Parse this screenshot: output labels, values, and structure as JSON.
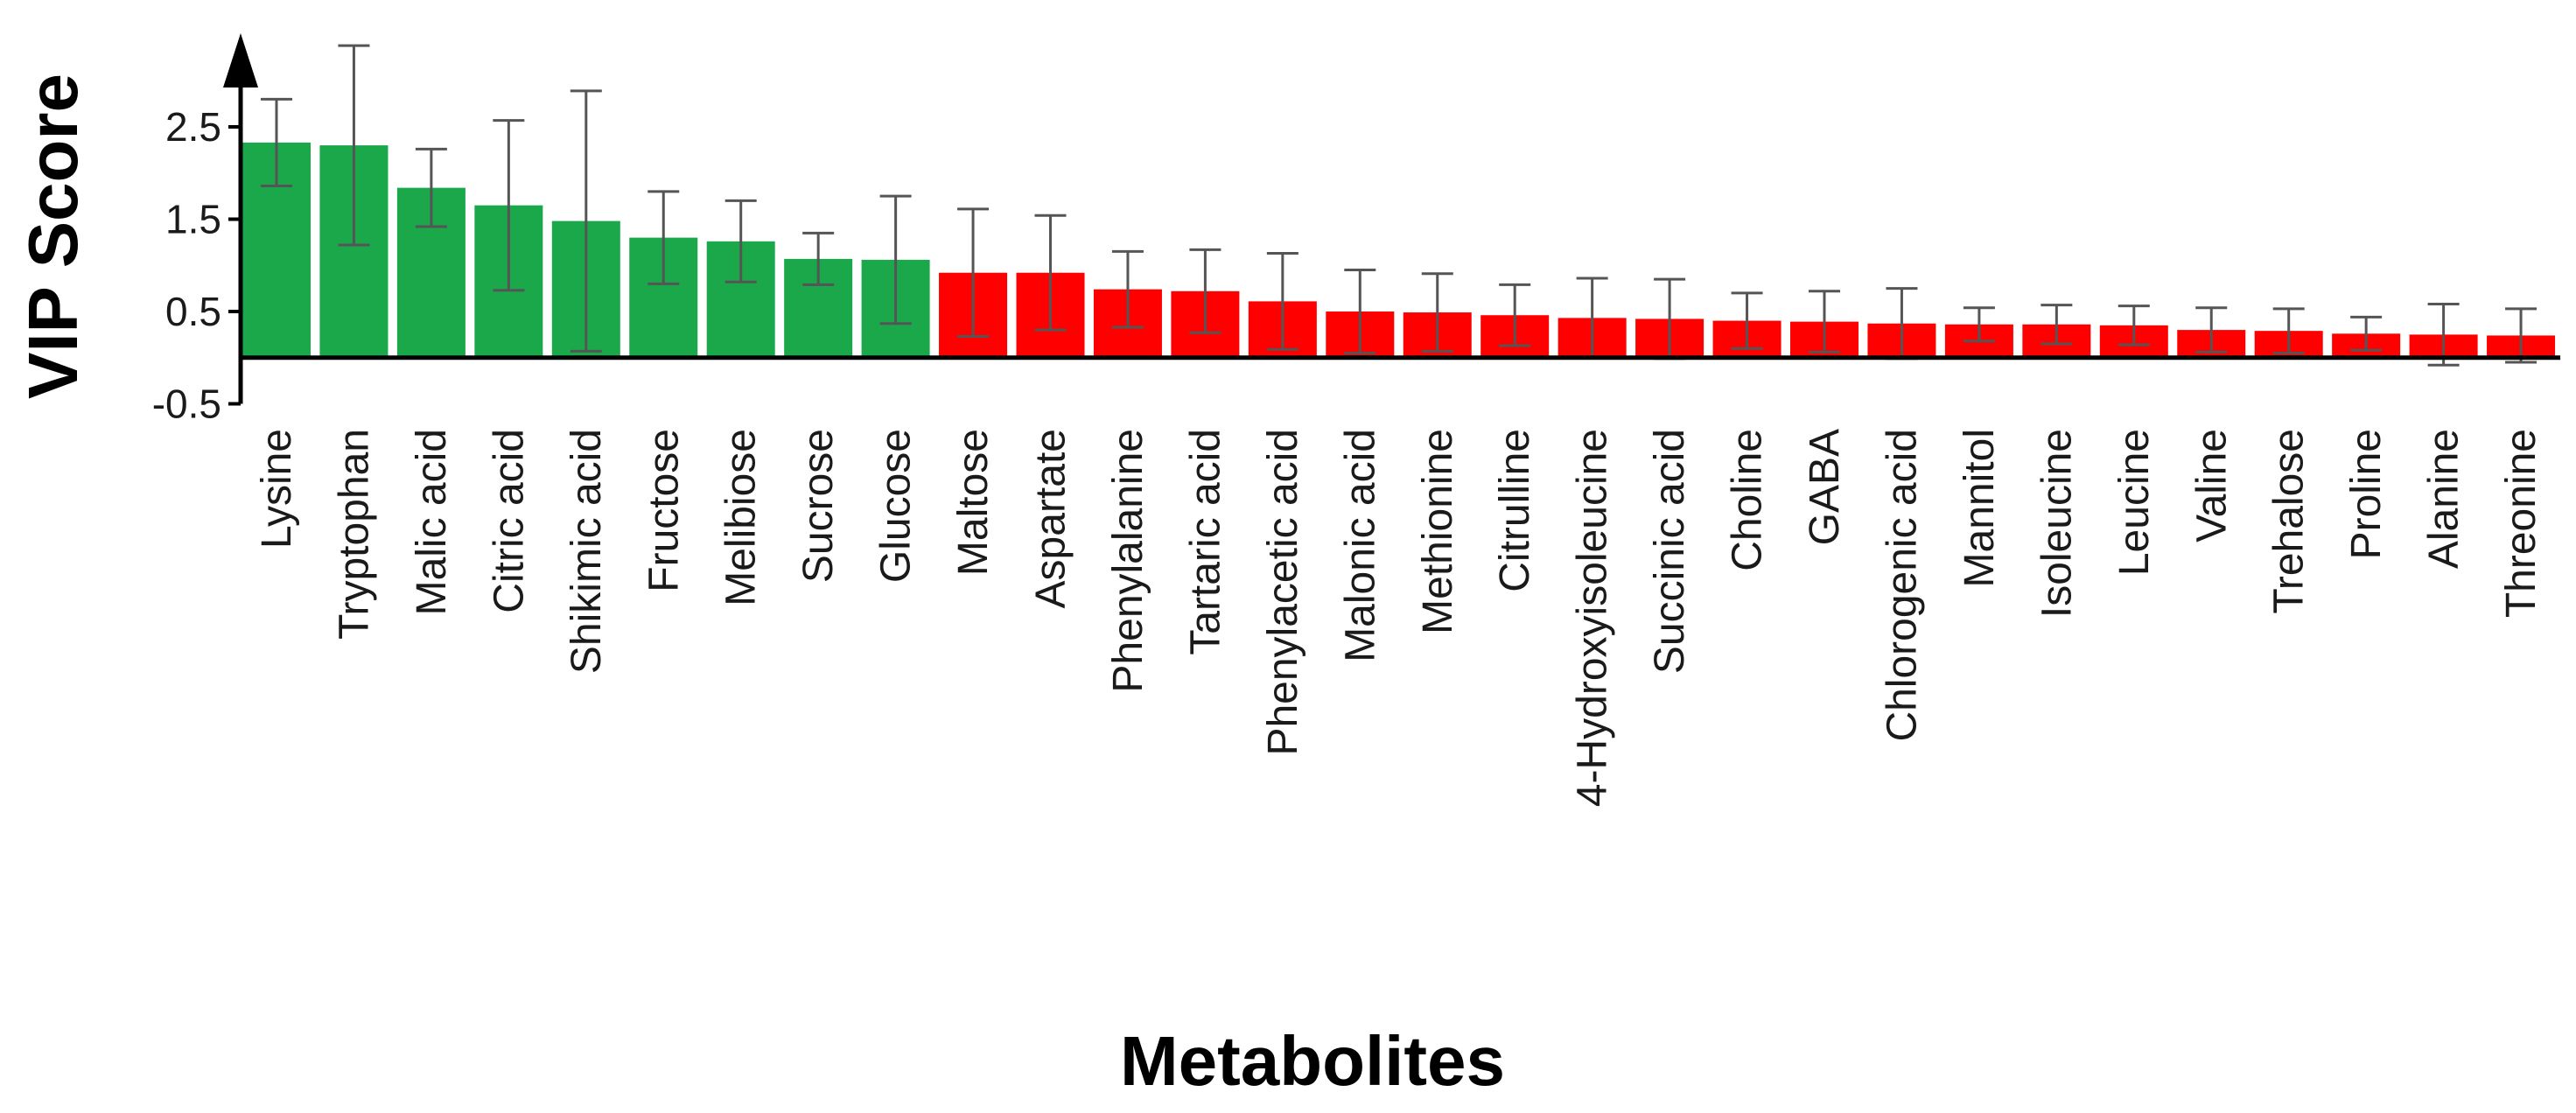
{
  "chart_data": {
    "type": "bar",
    "title": "",
    "xlabel": "Metabolites",
    "ylabel": "VIP Score",
    "ylim": [
      -0.5,
      3.5
    ],
    "yticks": [
      "-0.5",
      "0.5",
      "1.5",
      "2.5"
    ],
    "ytick_values": [
      -0.5,
      0.5,
      1.5,
      2.5
    ],
    "grid": false,
    "legend": null,
    "threshold": 1.0,
    "colors": {
      "important": "#1aa84b",
      "unimportant": "#ff0000",
      "axis": "#000000",
      "error": "#555555"
    },
    "categories": [
      "Lysine",
      "Tryptophan",
      "Malic acid",
      "Citric acid",
      "Shikimic acid",
      "Fructose",
      "Melibiose",
      "Sucrose",
      "Glucose",
      "Maltose",
      "Aspartate",
      "Phenylalanine",
      "Tartaric acid",
      "Phenylacetic acid",
      "Malonic acid",
      "Methionine",
      "Citrulline",
      "4-Hydroxyisoleucine",
      "Succinic acid",
      "Choline",
      "GABA",
      "Chlorogenic acid",
      "Mannitol",
      "Isoleucine",
      "Leucine",
      "Valine",
      "Trehalose",
      "Proline",
      "Alanine",
      "Threonine"
    ],
    "values": [
      2.33,
      2.3,
      1.84,
      1.65,
      1.48,
      1.3,
      1.26,
      1.07,
      1.06,
      0.92,
      0.92,
      0.74,
      0.72,
      0.61,
      0.5,
      0.49,
      0.46,
      0.43,
      0.42,
      0.4,
      0.39,
      0.37,
      0.36,
      0.36,
      0.35,
      0.3,
      0.29,
      0.26,
      0.25,
      0.24
    ],
    "errors": [
      0.47,
      1.08,
      0.42,
      0.92,
      1.41,
      0.5,
      0.44,
      0.28,
      0.69,
      0.69,
      0.62,
      0.41,
      0.45,
      0.52,
      0.45,
      0.42,
      0.33,
      0.43,
      0.43,
      0.3,
      0.33,
      0.38,
      0.18,
      0.21,
      0.21,
      0.24,
      0.24,
      0.18,
      0.33,
      0.29
    ]
  }
}
